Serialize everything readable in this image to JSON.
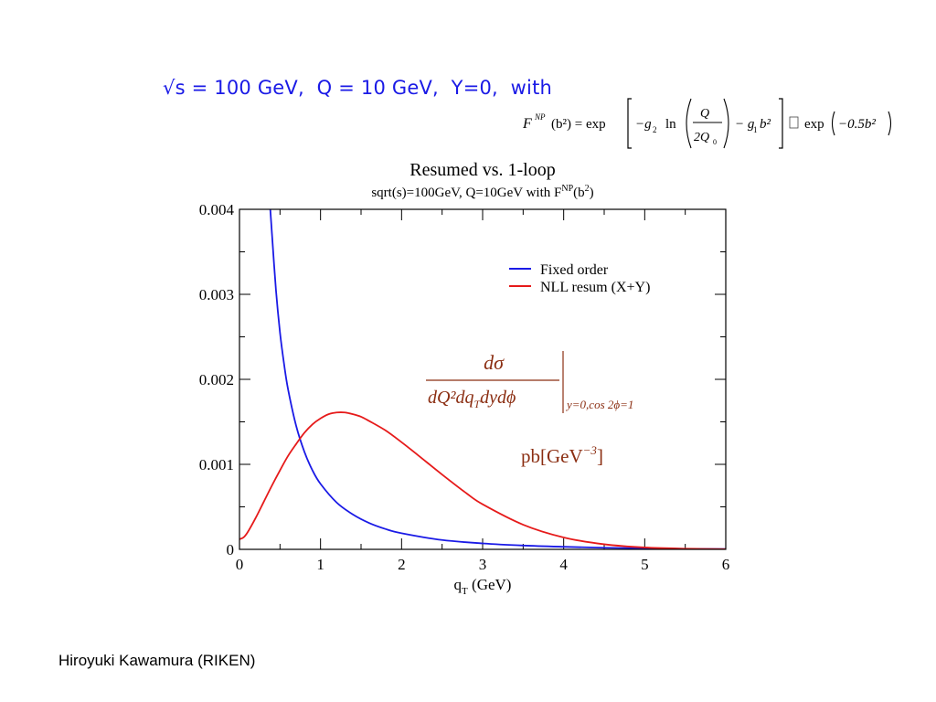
{
  "slide": {
    "header": "√s = 100 GeV,  Q = 10 GeV,  Y=0,  with",
    "footer": "Hiroyuki Kawamura (RIKEN)"
  },
  "formula": {
    "lhs": "F",
    "lhs_sup": "NP",
    "lhs_arg": "(b²) = exp",
    "g2": "−g",
    "g2_sub": "2",
    "ln": "ln",
    "frac_num": "Q",
    "frac_den": "2Q",
    "frac_den_sub": "0",
    "g1": "− g",
    "g1_sub": "1",
    "g1_tail": "b²",
    "tail": "exp",
    "tail_arg": "−0.5b²"
  },
  "chart_data": {
    "type": "line",
    "title": "Resumed vs. 1-loop",
    "subtitle": "sqrt(s)=100GeV, Q=10GeV with F",
    "subtitle_sup": "NP",
    "subtitle_tail": "(b",
    "subtitle_sup2": "2",
    "subtitle_end": ")",
    "xlabel": "q",
    "xlabel_sub": "T",
    "xlabel_tail": " (GeV)",
    "ylabel": "",
    "xlim": [
      0,
      6
    ],
    "ylim": [
      0,
      0.004
    ],
    "x_ticks": [
      "0",
      "1",
      "2",
      "3",
      "4",
      "5",
      "6"
    ],
    "y_ticks": [
      "0",
      "0.001",
      "0.002",
      "0.003",
      "0.004"
    ],
    "legend_position": "top-right",
    "grid": false,
    "series": [
      {
        "name": "Fixed order",
        "color": "#1a1ae6",
        "x": [
          0.38,
          0.4,
          0.45,
          0.5,
          0.55,
          0.6,
          0.7,
          0.8,
          0.9,
          1.0,
          1.2,
          1.4,
          1.6,
          1.8,
          2.0,
          2.5,
          3.0,
          3.5,
          4.0,
          4.5,
          5.0,
          5.5,
          6.0
        ],
        "y": [
          0.004,
          0.00372,
          0.00305,
          0.00255,
          0.00218,
          0.00188,
          0.00145,
          0.00115,
          0.00093,
          0.00077,
          0.00055,
          0.00041,
          0.00031,
          0.00024,
          0.00019,
          0.00011,
          7e-05,
          4.5e-05,
          3e-05,
          1.9e-05,
          1.2e-05,
          7e-06,
          4e-06
        ]
      },
      {
        "name": "NLL resum (X+Y)",
        "color": "#e61a1a",
        "x": [
          0.0,
          0.05,
          0.1,
          0.2,
          0.3,
          0.4,
          0.5,
          0.6,
          0.7,
          0.8,
          0.9,
          1.0,
          1.1,
          1.2,
          1.3,
          1.4,
          1.5,
          1.6,
          1.8,
          2.0,
          2.2,
          2.5,
          2.8,
          3.0,
          3.5,
          4.0,
          4.5,
          5.0,
          5.5,
          6.0
        ],
        "y": [
          0.00012,
          0.00014,
          0.0002,
          0.00037,
          0.00056,
          0.00075,
          0.00093,
          0.0011,
          0.00124,
          0.00137,
          0.00147,
          0.00154,
          0.00159,
          0.00161,
          0.00161,
          0.00159,
          0.00156,
          0.00151,
          0.0014,
          0.00126,
          0.00111,
          0.00088,
          0.00066,
          0.00053,
          0.00029,
          0.00014,
          6e-05,
          2.2e-05,
          8e-06,
          3e-06
        ]
      }
    ],
    "annotation": {
      "num": "dσ",
      "den": "dQ²dq",
      "den_sub": "T",
      "den_tail": "dydϕ",
      "eval": "y=0,cos 2ϕ=1",
      "units": "pb[GeV",
      "units_sup": "−3",
      "units_end": "]",
      "color": "#8b2e12"
    }
  }
}
